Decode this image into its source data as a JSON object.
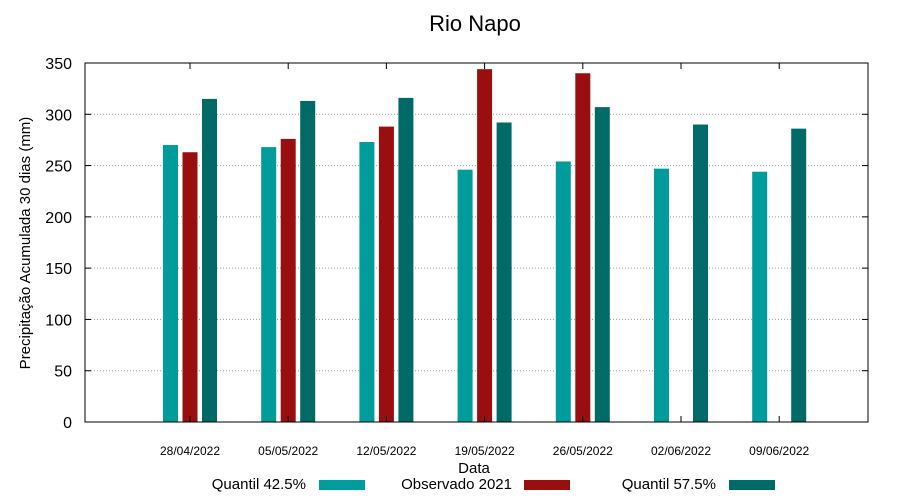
{
  "chart_data": {
    "type": "bar",
    "title": "Rio Napo",
    "xlabel": "Data",
    "ylabel": "Precipitação Acumulada 30 dias (mm)",
    "ylim": [
      0,
      350
    ],
    "yticks": [
      0,
      50,
      100,
      150,
      200,
      250,
      300,
      350
    ],
    "grid": true,
    "legend_position": "bottom",
    "categories": [
      "28/04/2022",
      "05/05/2022",
      "12/05/2022",
      "19/05/2022",
      "26/05/2022",
      "02/06/2022",
      "09/06/2022"
    ],
    "series": [
      {
        "name": "Quantil 42.5%",
        "color": "#009b9b",
        "values": [
          270,
          268,
          273,
          246,
          254,
          247,
          244
        ]
      },
      {
        "name": "Observado 2021",
        "color": "#990f0f",
        "values": [
          263,
          276,
          288,
          344,
          340,
          null,
          null
        ]
      },
      {
        "name": "Quantil 57.5%",
        "color": "#006a66",
        "values": [
          315,
          313,
          316,
          292,
          307,
          290,
          286
        ]
      }
    ]
  }
}
